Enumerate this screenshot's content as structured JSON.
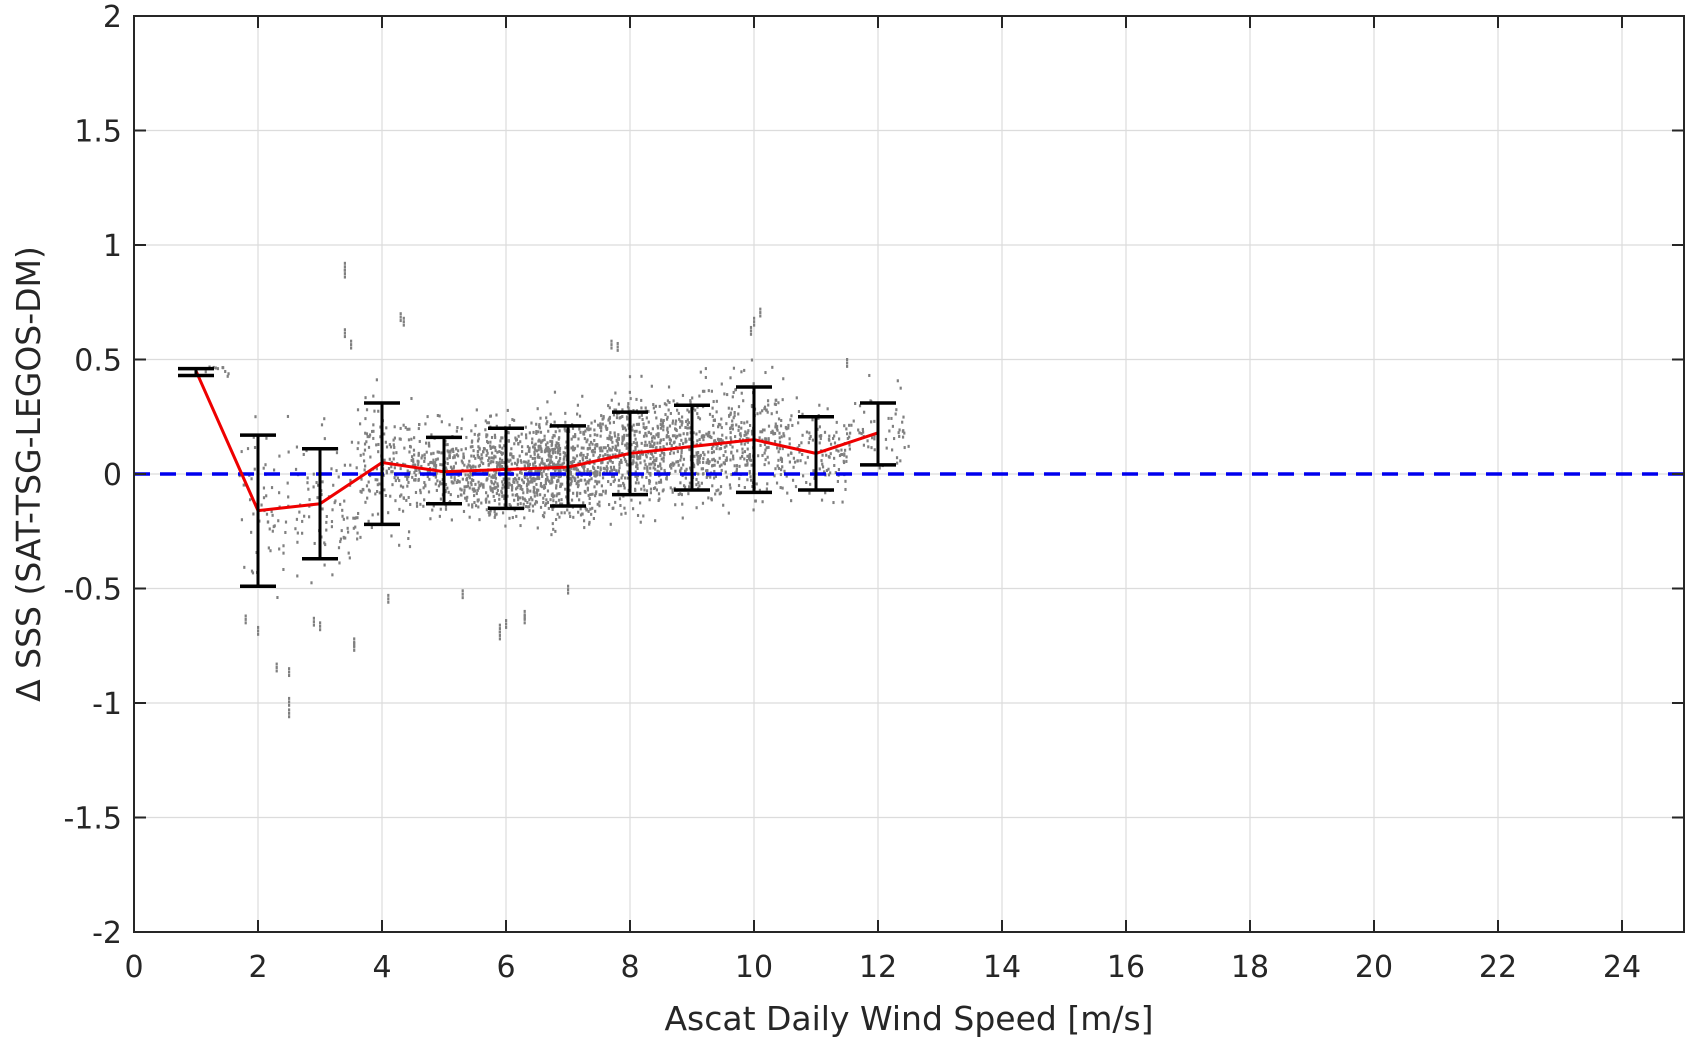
{
  "chart_data": {
    "type": "scatter",
    "xlabel": "Ascat Daily Wind Speed [m/s]",
    "ylabel": "Δ SSS (SAT-TSG-LEGOS-DM)",
    "xlim": [
      0,
      25
    ],
    "ylim": [
      -2,
      2
    ],
    "x_ticks": [
      "0",
      "2",
      "4",
      "6",
      "8",
      "10",
      "12",
      "14",
      "16",
      "18",
      "20",
      "22",
      "24"
    ],
    "y_ticks": [
      "2",
      "1.5",
      "1",
      "0.5",
      "0",
      "-0.5",
      "-1",
      "-1.5",
      "-2"
    ],
    "grid": true,
    "zero_line": {
      "y": 0,
      "style": "dashed",
      "color": "#0000ee"
    },
    "mean_line": {
      "color": "#ee0000",
      "x": [
        1,
        2,
        3,
        4,
        5,
        6,
        7,
        8,
        9,
        10,
        11,
        12
      ],
      "y": [
        0.45,
        -0.16,
        -0.13,
        0.05,
        0.01,
        0.02,
        0.03,
        0.09,
        0.12,
        0.15,
        0.09,
        0.18
      ]
    },
    "error_bars": {
      "color": "#000000",
      "x": [
        1,
        2,
        3,
        4,
        5,
        6,
        7,
        8,
        9,
        10,
        11,
        12
      ],
      "low": [
        0.43,
        -0.49,
        -0.37,
        -0.22,
        -0.13,
        -0.15,
        -0.14,
        -0.09,
        -0.07,
        -0.08,
        -0.07,
        0.04
      ],
      "high": [
        0.46,
        0.17,
        0.11,
        0.31,
        0.16,
        0.2,
        0.21,
        0.27,
        0.3,
        0.38,
        0.25,
        0.31
      ]
    },
    "scatter_color": "#808080",
    "scatter_clusters": [
      {
        "x_range": [
          1.1,
          1.6
        ],
        "center": 0.45,
        "spread": 0.02,
        "count": 10
      },
      {
        "x_range": [
          1.7,
          2.5
        ],
        "center": -0.15,
        "spread": 0.25,
        "count": 60
      },
      {
        "x_range": [
          2.6,
          3.6
        ],
        "center": -0.12,
        "spread": 0.22,
        "count": 90
      },
      {
        "x_range": [
          3.6,
          4.5
        ],
        "center": 0.04,
        "spread": 0.2,
        "count": 160
      },
      {
        "x_range": [
          4.5,
          5.5
        ],
        "center": 0.01,
        "spread": 0.14,
        "count": 260
      },
      {
        "x_range": [
          5.5,
          6.5
        ],
        "center": 0.02,
        "spread": 0.15,
        "count": 420
      },
      {
        "x_range": [
          6.5,
          7.5
        ],
        "center": 0.03,
        "spread": 0.16,
        "count": 480
      },
      {
        "x_range": [
          7.5,
          8.5
        ],
        "center": 0.09,
        "spread": 0.17,
        "count": 420
      },
      {
        "x_range": [
          8.5,
          9.5
        ],
        "center": 0.12,
        "spread": 0.17,
        "count": 320
      },
      {
        "x_range": [
          9.5,
          10.5
        ],
        "center": 0.15,
        "spread": 0.2,
        "count": 240
      },
      {
        "x_range": [
          10.5,
          11.5
        ],
        "center": 0.09,
        "spread": 0.14,
        "count": 120
      },
      {
        "x_range": [
          11.5,
          12.5
        ],
        "center": 0.18,
        "spread": 0.12,
        "count": 60
      }
    ],
    "scatter_outliers": [
      [
        3.4,
        0.92
      ],
      [
        3.4,
        0.89
      ],
      [
        3.4,
        0.63
      ],
      [
        3.5,
        0.58
      ],
      [
        4.3,
        0.7
      ],
      [
        4.35,
        0.68
      ],
      [
        2.5,
        -0.85
      ],
      [
        2.5,
        -0.98
      ],
      [
        2.5,
        -1.03
      ],
      [
        2.3,
        -0.83
      ],
      [
        3.55,
        -0.72
      ],
      [
        3.55,
        -0.74
      ],
      [
        5.9,
        -0.66
      ],
      [
        5.9,
        -0.69
      ],
      [
        6.0,
        -0.64
      ],
      [
        6.3,
        -0.6
      ],
      [
        6.3,
        -0.62
      ],
      [
        10.1,
        0.72
      ],
      [
        10.0,
        0.68
      ],
      [
        9.95,
        0.64
      ],
      [
        7.7,
        0.58
      ],
      [
        7.8,
        0.57
      ],
      [
        1.8,
        -0.62
      ],
      [
        2.0,
        -0.67
      ],
      [
        2.9,
        -0.63
      ],
      [
        3.0,
        -0.65
      ],
      [
        5.3,
        -0.51
      ],
      [
        4.1,
        -0.53
      ],
      [
        7.0,
        -0.49
      ],
      [
        11.5,
        0.5
      ]
    ]
  }
}
